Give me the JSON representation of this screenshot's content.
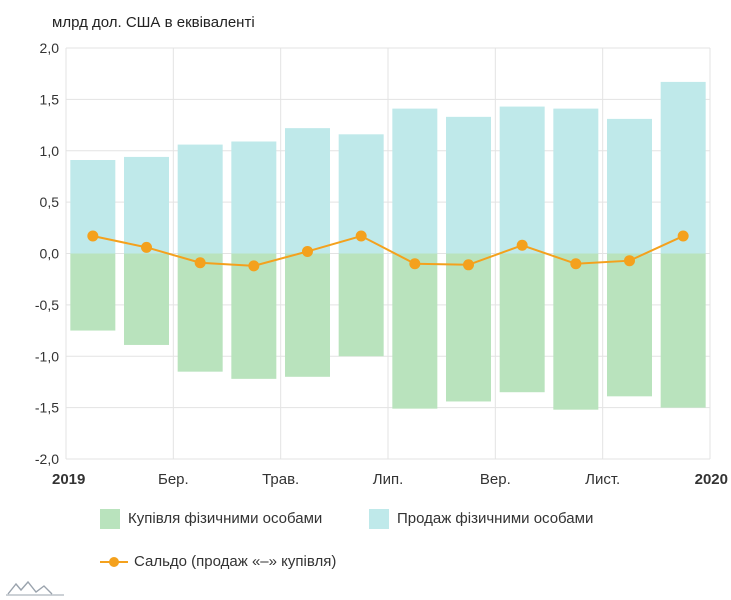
{
  "chart_data": {
    "type": "bar",
    "unit_label": "млрд дол. США в еквіваленті",
    "ylim": [
      -2.0,
      2.0
    ],
    "y_ticks": [
      "2,0",
      "1,5",
      "1,0",
      "0,5",
      "0,0",
      "-0,5",
      "-1,0",
      "-1,5",
      "-2,0"
    ],
    "y_tick_values": [
      2.0,
      1.5,
      1.0,
      0.5,
      0.0,
      -0.5,
      -1.0,
      -1.5,
      -2.0
    ],
    "x_tick_labels": [
      {
        "label": "2019",
        "bold": true
      },
      {
        "label": "Бер.",
        "bold": false
      },
      {
        "label": "Трав.",
        "bold": false
      },
      {
        "label": "Лип.",
        "bold": false
      },
      {
        "label": "Вер.",
        "bold": false
      },
      {
        "label": "Лист.",
        "bold": false
      },
      {
        "label": "2020",
        "bold": true
      }
    ],
    "series": [
      {
        "name": "Купівля фізичними особами",
        "color": "#b9e3bd",
        "values": [
          -0.75,
          -0.89,
          -1.15,
          -1.22,
          -1.2,
          -1.0,
          -1.51,
          -1.44,
          -1.35,
          -1.52,
          -1.39,
          -1.5
        ]
      },
      {
        "name": "Продаж фізичними особами",
        "color": "#bfe9ea",
        "values": [
          0.91,
          0.94,
          1.06,
          1.09,
          1.22,
          1.16,
          1.41,
          1.33,
          1.43,
          1.41,
          1.31,
          1.67
        ]
      },
      {
        "name": "Сальдо (продаж «–» купівля)",
        "color": "#f4a11d",
        "values": [
          0.17,
          0.06,
          -0.09,
          -0.12,
          0.02,
          0.17,
          -0.1,
          -0.11,
          0.08,
          -0.1,
          -0.07,
          0.17
        ]
      }
    ],
    "grid": true,
    "legend_position": "bottom"
  }
}
